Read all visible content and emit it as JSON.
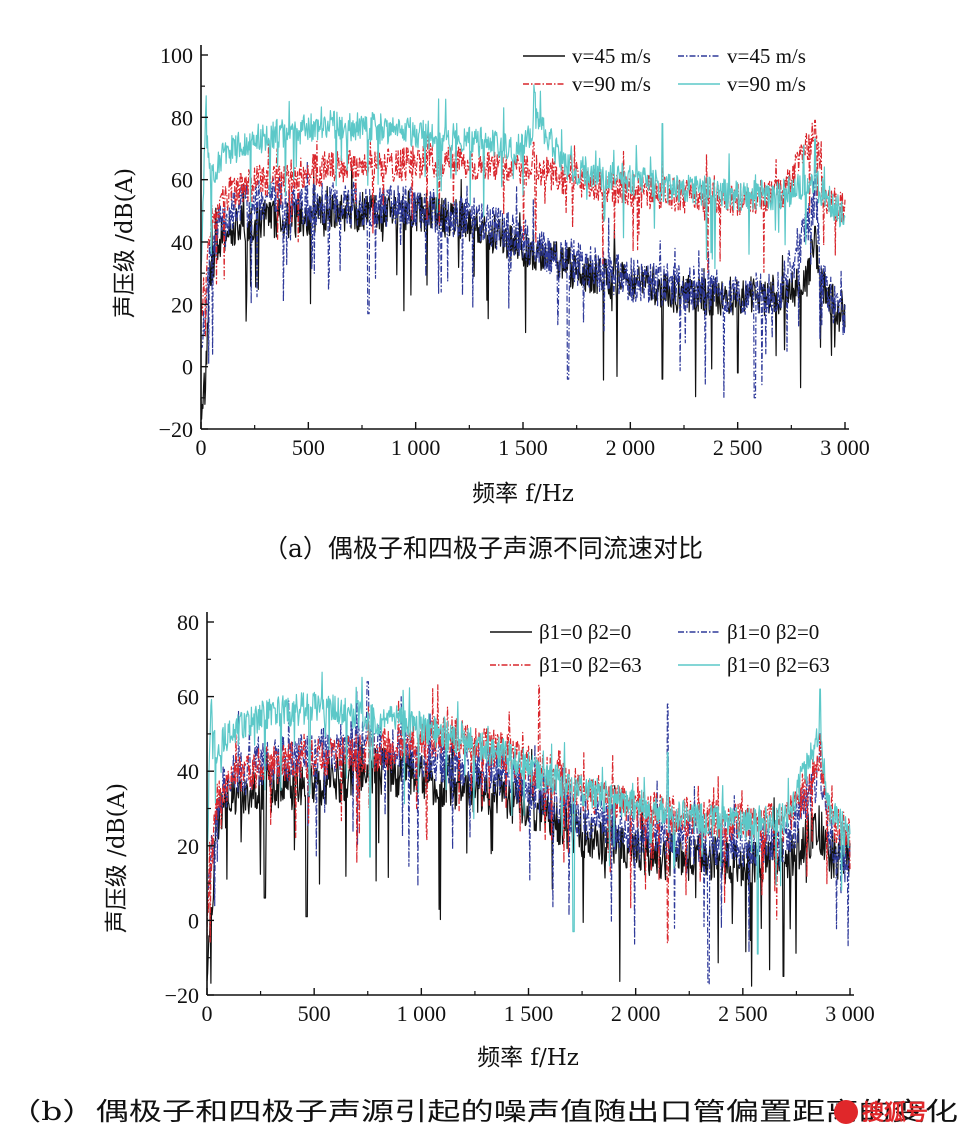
{
  "chart_data": [
    {
      "type": "line",
      "panel_caption": "（a）偶极子和四极子声源不同流速对比",
      "xlabel": "频率 f/Hz",
      "ylabel": "声压级 /dB(A)",
      "xlim": [
        0,
        3000
      ],
      "ylim": [
        -20,
        100
      ],
      "xticks": [
        "0",
        "500",
        "1 000",
        "1 500",
        "2 000",
        "2 500",
        "3 000"
      ],
      "yticks": [
        "−20",
        "0",
        "20",
        "40",
        "60",
        "80",
        "100"
      ],
      "legend_position": "top-right",
      "series": [
        {
          "legend": "v=45 m/s",
          "color": "#111111",
          "dash": "solid",
          "keypoints": [
            [
              0,
              -12
            ],
            [
              20,
              -5
            ],
            [
              40,
              28
            ],
            [
              80,
              40
            ],
            [
              150,
              45
            ],
            [
              300,
              47
            ],
            [
              500,
              48
            ],
            [
              800,
              50
            ],
            [
              1000,
              50
            ],
            [
              1200,
              47
            ],
            [
              1400,
              42
            ],
            [
              1600,
              35
            ],
            [
              1800,
              30
            ],
            [
              2000,
              27
            ],
            [
              2200,
              24
            ],
            [
              2500,
              22
            ],
            [
              2700,
              23
            ],
            [
              2820,
              28
            ],
            [
              2860,
              40
            ],
            [
              2900,
              25
            ],
            [
              3000,
              15
            ]
          ],
          "noise": 12,
          "spikes": [
            [
              2860,
              45
            ],
            [
              2150,
              -4
            ],
            [
              2500,
              -2
            ]
          ]
        },
        {
          "legend": "v=45 m/s",
          "color": "#2f3a9a",
          "dash": "dashdot",
          "keypoints": [
            [
              0,
              5
            ],
            [
              40,
              35
            ],
            [
              100,
              48
            ],
            [
              250,
              53
            ],
            [
              500,
              52
            ],
            [
              800,
              52
            ],
            [
              1000,
              51
            ],
            [
              1200,
              48
            ],
            [
              1400,
              44
            ],
            [
              1600,
              37
            ],
            [
              1800,
              32
            ],
            [
              2000,
              28
            ],
            [
              2200,
              26
            ],
            [
              2500,
              23
            ],
            [
              2700,
              24
            ],
            [
              2860,
              52
            ],
            [
              2900,
              26
            ],
            [
              3000,
              15
            ]
          ],
          "noise": 13,
          "spikes": [
            [
              2860,
              63
            ],
            [
              1710,
              -4
            ],
            [
              2580,
              -10
            ],
            [
              780,
              17
            ]
          ]
        },
        {
          "legend": "v=90 m/s",
          "color": "#d9262c",
          "dash": "dashdot",
          "keypoints": [
            [
              0,
              15
            ],
            [
              40,
              45
            ],
            [
              100,
              55
            ],
            [
              300,
              60
            ],
            [
              600,
              64
            ],
            [
              900,
              65
            ],
            [
              1200,
              66
            ],
            [
              1500,
              64
            ],
            [
              1700,
              60
            ],
            [
              2000,
              57
            ],
            [
              2200,
              55
            ],
            [
              2500,
              54
            ],
            [
              2700,
              55
            ],
            [
              2860,
              75
            ],
            [
              2900,
              55
            ],
            [
              3000,
              50
            ]
          ],
          "noise": 10,
          "spikes": [
            [
              2860,
              79
            ],
            [
              2150,
              66
            ],
            [
              1550,
              72
            ]
          ]
        },
        {
          "legend": "v=90 m/s",
          "color": "#5cc8c8",
          "dash": "solid",
          "keypoints": [
            [
              0,
              30
            ],
            [
              20,
              80
            ],
            [
              40,
              60
            ],
            [
              100,
              68
            ],
            [
              300,
              74
            ],
            [
              600,
              78
            ],
            [
              900,
              76
            ],
            [
              1200,
              73
            ],
            [
              1500,
              70
            ],
            [
              1560,
              80
            ],
            [
              1700,
              64
            ],
            [
              2000,
              60
            ],
            [
              2200,
              57
            ],
            [
              2500,
              55
            ],
            [
              2700,
              55
            ],
            [
              2860,
              60
            ],
            [
              2900,
              55
            ],
            [
              3000,
              48
            ]
          ],
          "noise": 9,
          "spikes": [
            [
              1555,
              88
            ],
            [
              2150,
              78
            ],
            [
              2860,
              73
            ]
          ]
        }
      ]
    },
    {
      "type": "line",
      "panel_caption": "（b）偶极子和四极子声源引起的噪声值随出口管偏置距离的变化",
      "xlabel": "频率 f/Hz",
      "ylabel": "声压级 /dB(A)",
      "xlim": [
        0,
        3000
      ],
      "ylim": [
        -20,
        80
      ],
      "xticks": [
        "0",
        "500",
        "1 000",
        "1 500",
        "2 000",
        "2 500",
        "3 000"
      ],
      "yticks": [
        "−20",
        "0",
        "20",
        "40",
        "60",
        "80"
      ],
      "legend_position": "top-right",
      "series": [
        {
          "legend": "β1=0  β2=0",
          "color": "#111111",
          "dash": "solid",
          "keypoints": [
            [
              0,
              -10
            ],
            [
              20,
              0
            ],
            [
              40,
              25
            ],
            [
              100,
              33
            ],
            [
              300,
              35
            ],
            [
              500,
              37
            ],
            [
              800,
              40
            ],
            [
              1000,
              38
            ],
            [
              1200,
              36
            ],
            [
              1400,
              33
            ],
            [
              1600,
              28
            ],
            [
              1800,
              22
            ],
            [
              2000,
              18
            ],
            [
              2200,
              17
            ],
            [
              2500,
              15
            ],
            [
              2700,
              16
            ],
            [
              2850,
              25
            ],
            [
              2900,
              18
            ],
            [
              3000,
              16
            ]
          ],
          "noise": 12,
          "spikes": [
            [
              2690,
              -15
            ],
            [
              465,
              1
            ],
            [
              270,
              6
            ]
          ]
        },
        {
          "legend": "β1=0  β2=0",
          "color": "#2f3a9a",
          "dash": "dashdot",
          "keypoints": [
            [
              0,
              5
            ],
            [
              40,
              30
            ],
            [
              100,
              38
            ],
            [
              300,
              42
            ],
            [
              500,
              45
            ],
            [
              750,
              48
            ],
            [
              1000,
              44
            ],
            [
              1200,
              42
            ],
            [
              1400,
              39
            ],
            [
              1600,
              33
            ],
            [
              1800,
              27
            ],
            [
              2000,
              24
            ],
            [
              2200,
              22
            ],
            [
              2500,
              20
            ],
            [
              2700,
              20
            ],
            [
              2860,
              40
            ],
            [
              2900,
              22
            ],
            [
              3000,
              15
            ]
          ],
          "noise": 12,
          "spikes": [
            [
              750,
              64
            ],
            [
              2150,
              58
            ],
            [
              2860,
              50
            ],
            [
              2340,
              -17
            ]
          ]
        },
        {
          "legend": "β1=0  β2=63",
          "color": "#d9262c",
          "dash": "dashdot",
          "keypoints": [
            [
              0,
              0
            ],
            [
              40,
              30
            ],
            [
              100,
              38
            ],
            [
              300,
              42
            ],
            [
              600,
              44
            ],
            [
              900,
              46
            ],
            [
              1100,
              50
            ],
            [
              1300,
              47
            ],
            [
              1500,
              42
            ],
            [
              1700,
              36
            ],
            [
              2000,
              30
            ],
            [
              2200,
              28
            ],
            [
              2500,
              26
            ],
            [
              2700,
              26
            ],
            [
              2860,
              42
            ],
            [
              2900,
              28
            ],
            [
              3000,
              22
            ]
          ],
          "noise": 10,
          "spikes": [
            [
              1550,
              63
            ],
            [
              2150,
              -6
            ],
            [
              2860,
              50
            ]
          ]
        },
        {
          "legend": "β1=0  β2=63",
          "color": "#5cc8c8",
          "dash": "solid",
          "keypoints": [
            [
              0,
              15
            ],
            [
              20,
              60
            ],
            [
              40,
              45
            ],
            [
              100,
              50
            ],
            [
              300,
              56
            ],
            [
              500,
              57
            ],
            [
              800,
              54
            ],
            [
              1000,
              52
            ],
            [
              1200,
              48
            ],
            [
              1400,
              44
            ],
            [
              1600,
              38
            ],
            [
              1800,
              34
            ],
            [
              2000,
              31
            ],
            [
              2200,
              28
            ],
            [
              2500,
              26
            ],
            [
              2700,
              27
            ],
            [
              2860,
              50
            ],
            [
              2900,
              30
            ],
            [
              3000,
              22
            ]
          ],
          "noise": 8,
          "spikes": [
            [
              2860,
              62
            ],
            [
              2150,
              45
            ],
            [
              760,
              17
            ],
            [
              1710,
              -3
            ],
            [
              2570,
              -9
            ]
          ]
        }
      ]
    }
  ],
  "watermark": "搜狐号"
}
